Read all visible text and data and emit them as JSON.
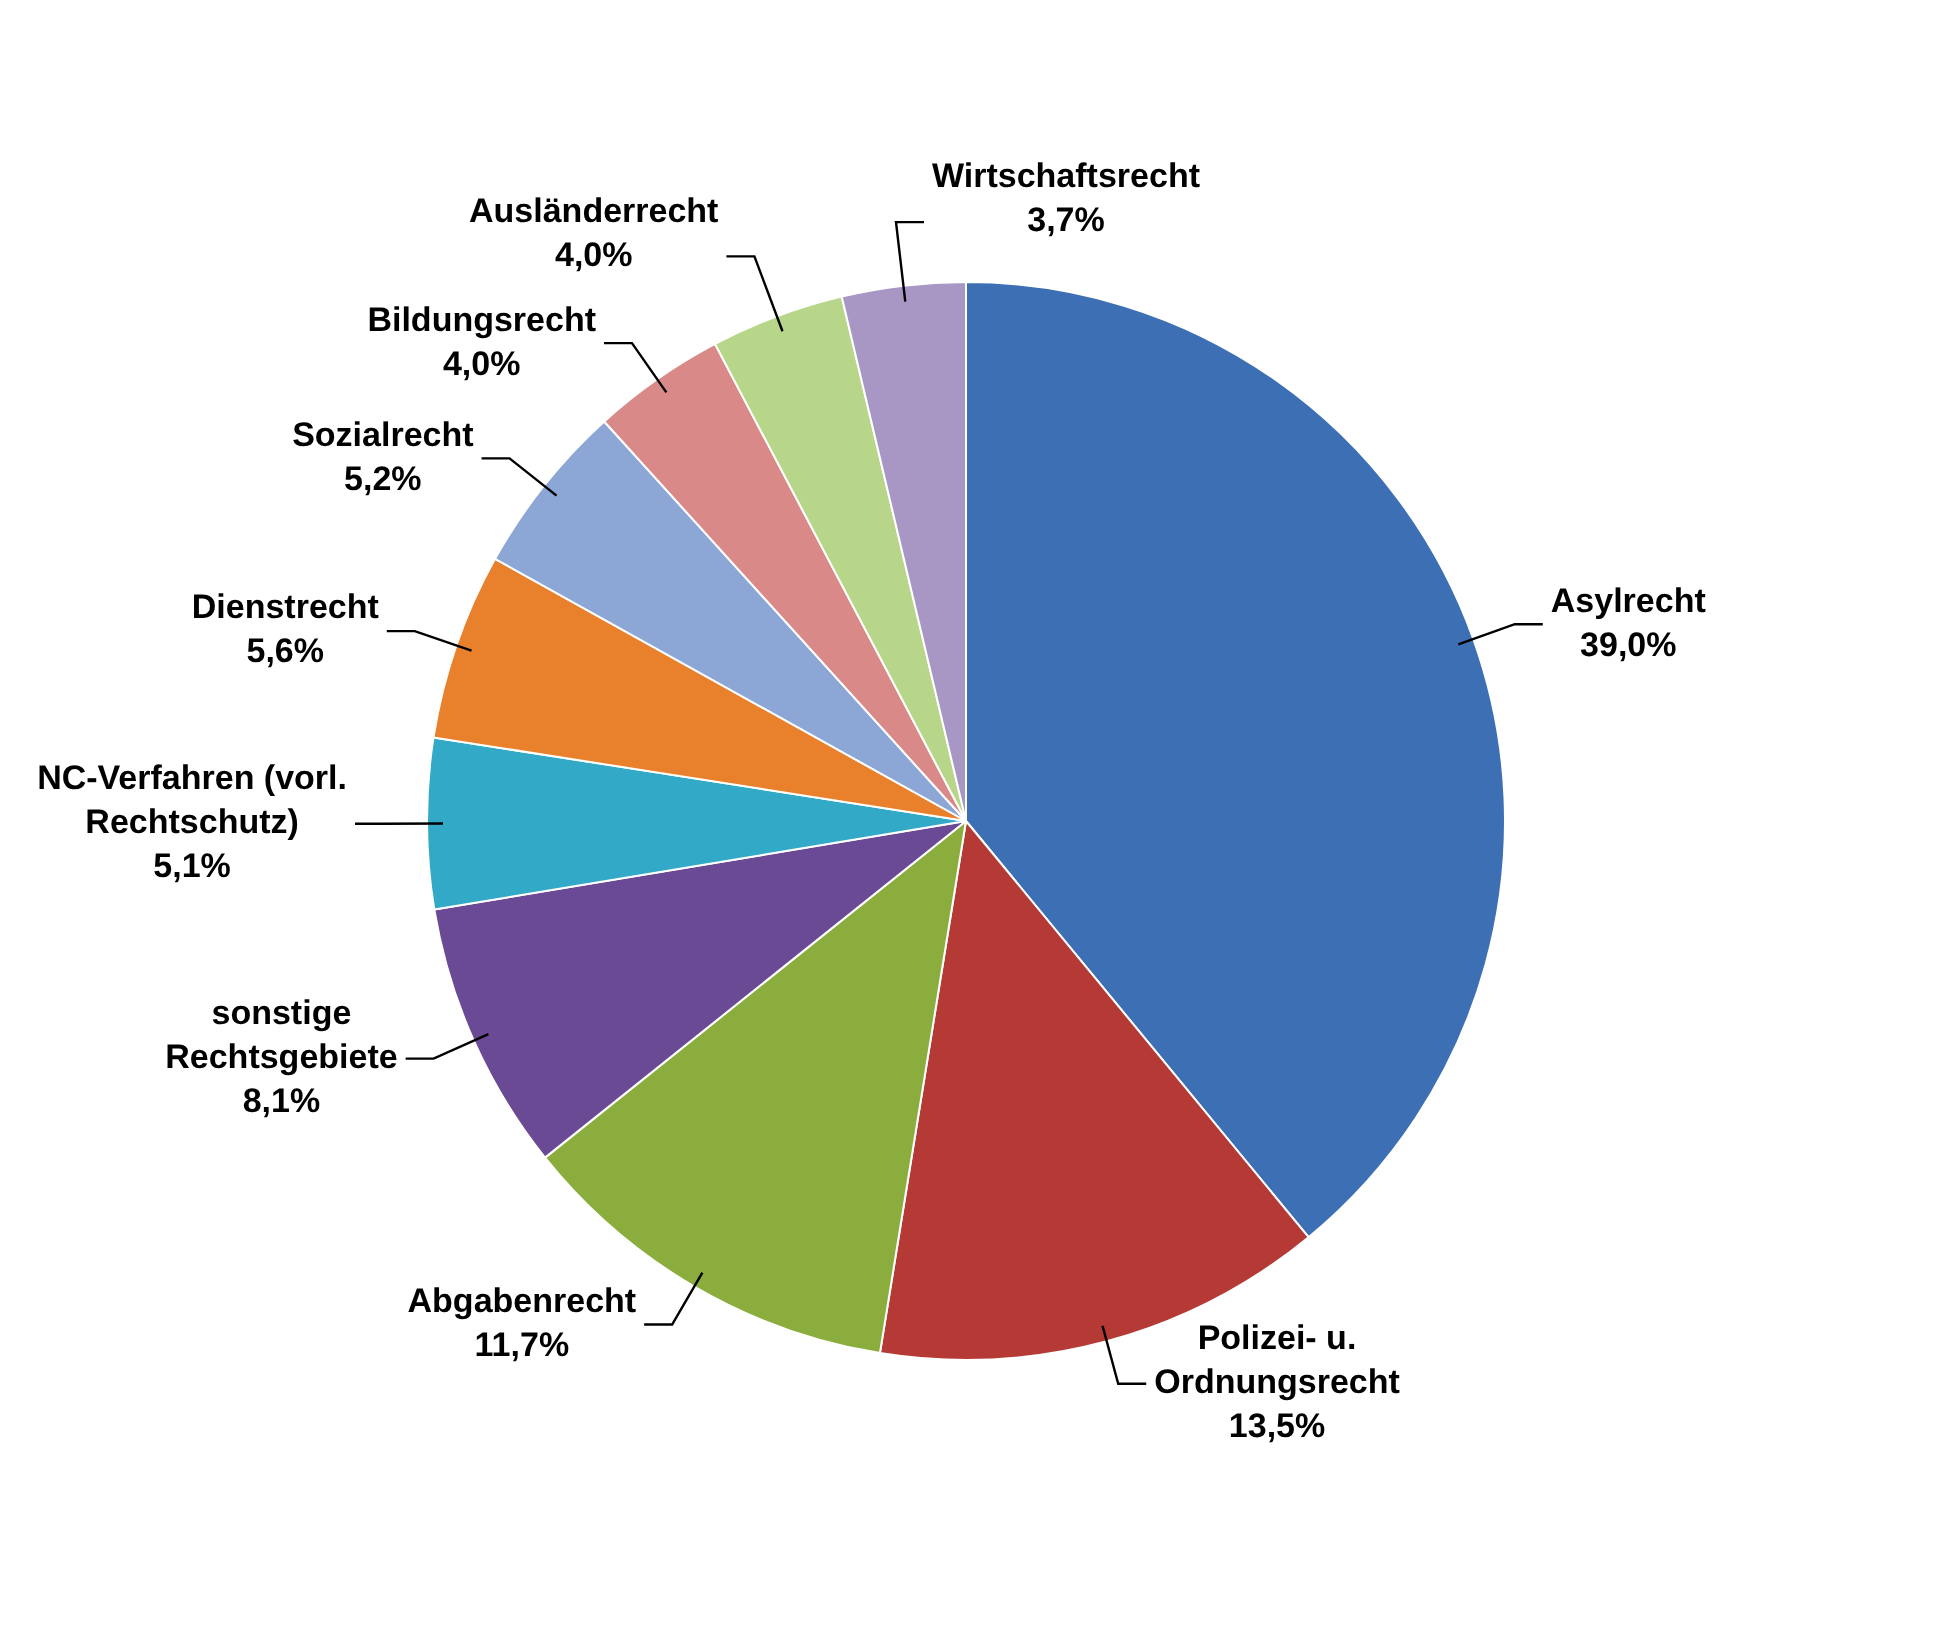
{
  "chart_data": {
    "type": "pie",
    "categories": [
      "Asylrecht",
      "Polizei- u. Ordnungsrecht",
      "Abgabenrecht",
      "sonstige Rechtsgebiete",
      "NC-Verfahren (vorl. Rechtschutz)",
      "Dienstrecht",
      "Sozialrecht",
      "Bildungsrecht",
      "Ausländerrecht",
      "Wirtschaftsrecht"
    ],
    "values": [
      39.0,
      13.5,
      11.7,
      8.1,
      5.1,
      5.6,
      5.2,
      4.0,
      4.0,
      3.7
    ],
    "value_labels": [
      "39,0%",
      "13,5%",
      "11,7%",
      "8,1%",
      "5,1%",
      "5,6%",
      "5,2%",
      "4,0%",
      "4,0%",
      "3,7%"
    ],
    "colors": [
      "#3d6fb5",
      "#b53a36",
      "#8aad3e",
      "#6a4a94",
      "#31a9c7",
      "#e8802c",
      "#8ca6d6",
      "#d98a88",
      "#b7d68a",
      "#a896c4"
    ],
    "legend": false
  }
}
